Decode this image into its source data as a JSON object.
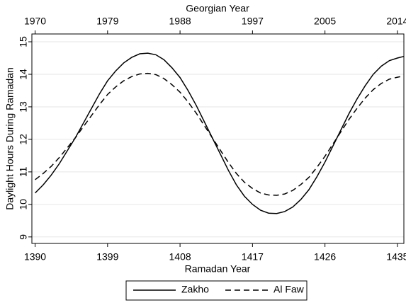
{
  "chart_data": {
    "type": "line",
    "xlabel": "Ramadan Year",
    "ylabel": "Daylight Hours During Ramadan",
    "x2label": "Georgian Year",
    "x": [
      1390,
      1391,
      1392,
      1393,
      1394,
      1395,
      1396,
      1397,
      1398,
      1399,
      1400,
      1401,
      1402,
      1403,
      1404,
      1405,
      1406,
      1407,
      1408,
      1409,
      1410,
      1411,
      1412,
      1413,
      1414,
      1415,
      1416,
      1417,
      1418,
      1419,
      1420,
      1421,
      1422,
      1423,
      1424,
      1425,
      1426,
      1427,
      1428,
      1429,
      1430,
      1431,
      1432,
      1433,
      1434,
      1435,
      1435.8
    ],
    "series": [
      {
        "name": "Zakho",
        "color": "#000000",
        "dash": "solid",
        "values": [
          10.35,
          10.6,
          10.9,
          11.25,
          11.65,
          12.05,
          12.5,
          12.95,
          13.4,
          13.8,
          14.1,
          14.35,
          14.52,
          14.63,
          14.65,
          14.6,
          14.45,
          14.2,
          13.9,
          13.5,
          13.05,
          12.55,
          12.05,
          11.55,
          11.05,
          10.6,
          10.25,
          10.0,
          9.82,
          9.73,
          9.72,
          9.78,
          9.92,
          10.15,
          10.45,
          10.85,
          11.3,
          11.8,
          12.3,
          12.8,
          13.25,
          13.65,
          14.0,
          14.25,
          14.42,
          14.5,
          14.55
        ]
      },
      {
        "name": "Al Faw",
        "color": "#000000",
        "dash": "dashed",
        "values": [
          10.76,
          10.95,
          11.17,
          11.44,
          11.74,
          12.05,
          12.39,
          12.73,
          13.07,
          13.38,
          13.61,
          13.8,
          13.93,
          14.01,
          14.03,
          13.99,
          13.87,
          13.68,
          13.45,
          13.15,
          12.81,
          12.43,
          12.05,
          11.67,
          11.29,
          10.95,
          10.68,
          10.49,
          10.35,
          10.29,
          10.28,
          10.32,
          10.43,
          10.61,
          10.83,
          11.14,
          11.48,
          11.86,
          12.24,
          12.62,
          12.96,
          13.27,
          13.53,
          13.72,
          13.85,
          13.91,
          13.95
        ]
      }
    ],
    "xlim": [
      1389.6,
      1435.8
    ],
    "xticks": [
      1390,
      1399,
      1408,
      1417,
      1426,
      1435
    ],
    "x2ticks": [
      1970,
      1979,
      1988,
      1997,
      2005,
      2014
    ],
    "x2tick_positions": [
      1390,
      1399,
      1408,
      1417,
      1426,
      1435
    ],
    "ylim": [
      8.8,
      15.24
    ],
    "yticks": [
      9,
      10,
      11,
      12,
      13,
      14,
      15
    ],
    "grid": true,
    "legend": "bottom"
  }
}
